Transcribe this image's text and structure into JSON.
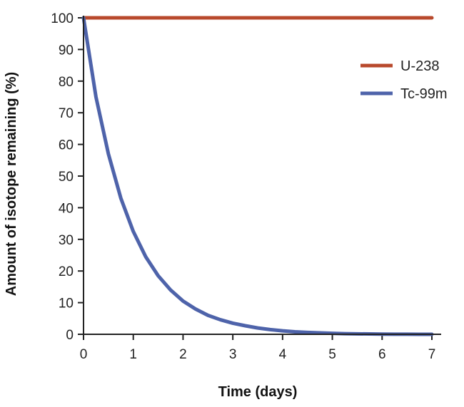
{
  "chart_data": {
    "type": "line",
    "title": "",
    "xlabel": "Time (days)",
    "ylabel": "Amount of isotope remaining (%)",
    "xlim": [
      0,
      7
    ],
    "ylim": [
      0,
      100
    ],
    "x_ticks": [
      "0",
      "1",
      "2",
      "3",
      "4",
      "5",
      "6",
      "7"
    ],
    "y_ticks": [
      "0",
      "10",
      "20",
      "30",
      "40",
      "50",
      "60",
      "70",
      "80",
      "90",
      "100"
    ],
    "grid": false,
    "legend_position": "top-right",
    "series": [
      {
        "name": "U-238",
        "color": "#b8492c",
        "x": [
          0,
          7
        ],
        "y": [
          100,
          100
        ]
      },
      {
        "name": "Tc-99m",
        "color": "#4e63aa",
        "x": [
          0,
          0.25,
          0.5,
          0.75,
          1,
          1.25,
          1.5,
          1.75,
          2,
          2.25,
          2.5,
          2.75,
          3,
          3.25,
          3.5,
          3.75,
          4,
          4.25,
          4.5,
          4.75,
          5,
          5.25,
          5.5,
          5.75,
          6,
          6.25,
          6.5,
          6.75,
          7
        ],
        "y": [
          100,
          75,
          57,
          43,
          32.5,
          24.5,
          18.5,
          14,
          10.5,
          8,
          6,
          4.6,
          3.5,
          2.7,
          2,
          1.5,
          1.1,
          0.8,
          0.6,
          0.45,
          0.3,
          0.2,
          0.15,
          0.1,
          0.05,
          0.03,
          0.02,
          0.01,
          0.0
        ]
      }
    ]
  }
}
